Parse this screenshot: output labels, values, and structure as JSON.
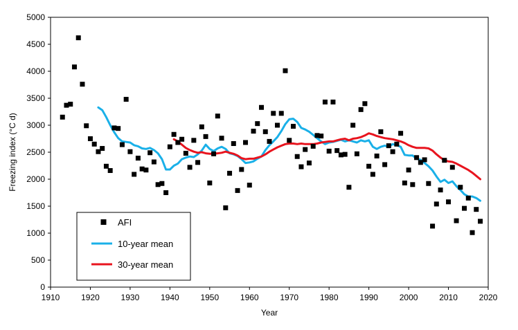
{
  "chart_data": {
    "type": "scatter",
    "title": "",
    "xlabel": "Year",
    "ylabel": "Freezing index (°C d)",
    "xlim": [
      1910,
      2020
    ],
    "ylim": [
      0,
      5000
    ],
    "xticks": [
      1910,
      1920,
      1930,
      1940,
      1950,
      1960,
      1970,
      1980,
      1990,
      2000,
      2010,
      2020
    ],
    "yticks": [
      0,
      500,
      1000,
      1500,
      2000,
      2500,
      3000,
      3500,
      4000,
      4500,
      5000
    ],
    "xtick_labels": [
      "1910",
      "1920",
      "1930",
      "1940",
      "1950",
      "1960",
      "1970",
      "1980",
      "1990",
      "2000",
      "2010",
      "2020"
    ],
    "ytick_labels": [
      "0",
      "500",
      "1000",
      "1500",
      "2000",
      "2500",
      "3000",
      "3500",
      "4000",
      "4500",
      "5000"
    ],
    "grid": false,
    "legend": {
      "placement": "bottom-left",
      "entries": [
        {
          "label": "AFI",
          "type": "marker",
          "color": "#000000"
        },
        {
          "label": "10-year mean",
          "type": "line",
          "color": "#1ab0e8"
        },
        {
          "label": "30-year mean",
          "type": "line",
          "color": "#e8141e"
        }
      ]
    },
    "series": [
      {
        "name": "AFI",
        "kind": "scatter",
        "color": "#000000",
        "x": [
          1913,
          1914,
          1915,
          1916,
          1917,
          1918,
          1919,
          1920,
          1921,
          1922,
          1923,
          1924,
          1925,
          1926,
          1927,
          1928,
          1929,
          1930,
          1931,
          1932,
          1933,
          1934,
          1935,
          1936,
          1937,
          1938,
          1939,
          1940,
          1941,
          1942,
          1943,
          1944,
          1945,
          1946,
          1947,
          1948,
          1949,
          1950,
          1951,
          1952,
          1953,
          1954,
          1955,
          1956,
          1957,
          1958,
          1959,
          1960,
          1961,
          1962,
          1963,
          1964,
          1965,
          1966,
          1967,
          1968,
          1969,
          1970,
          1971,
          1972,
          1973,
          1974,
          1975,
          1976,
          1977,
          1978,
          1979,
          1980,
          1981,
          1982,
          1983,
          1984,
          1985,
          1986,
          1987,
          1988,
          1989,
          1990,
          1991,
          1992,
          1993,
          1994,
          1995,
          1996,
          1997,
          1998,
          1999,
          2000,
          2001,
          2002,
          2003,
          2004,
          2005,
          2006,
          2007,
          2008,
          2009,
          2010,
          2011,
          2012,
          2013,
          2014,
          2015,
          2016,
          2017,
          2018
        ],
        "y": [
          3150,
          3370,
          3390,
          4080,
          4620,
          3760,
          2990,
          2750,
          2650,
          2510,
          2570,
          2240,
          2160,
          2950,
          2940,
          2640,
          3480,
          2510,
          2090,
          2390,
          2190,
          2170,
          2490,
          2320,
          1900,
          1920,
          1750,
          2600,
          2830,
          2680,
          2740,
          2480,
          2220,
          2720,
          2310,
          2970,
          2790,
          1930,
          2470,
          3170,
          2760,
          1470,
          2110,
          2660,
          1790,
          2180,
          2680,
          1890,
          2890,
          3030,
          3330,
          2880,
          2700,
          3220,
          3000,
          3220,
          4010,
          2720,
          2980,
          2420,
          2230,
          2550,
          2300,
          2610,
          2810,
          2800,
          3430,
          2520,
          3430,
          2530,
          2450,
          2460,
          1850,
          3000,
          2470,
          3290,
          3400,
          2240,
          2090,
          2430,
          2880,
          2270,
          2620,
          2510,
          2650,
          2850,
          1930,
          2170,
          1900,
          2400,
          2310,
          2360,
          1920,
          1130,
          1540,
          1800,
          2350,
          1580,
          2220,
          1230,
          1850,
          1460,
          1650,
          1010,
          1440,
          1220
        ]
      },
      {
        "name": "10-year mean",
        "kind": "line",
        "color": "#1ab0e8",
        "x": [
          1922,
          1923,
          1924,
          1925,
          1926,
          1927,
          1928,
          1929,
          1930,
          1931,
          1932,
          1933,
          1934,
          1935,
          1936,
          1937,
          1938,
          1939,
          1940,
          1941,
          1942,
          1943,
          1944,
          1945,
          1946,
          1947,
          1948,
          1949,
          1950,
          1951,
          1952,
          1953,
          1954,
          1955,
          1956,
          1957,
          1958,
          1959,
          1960,
          1961,
          1962,
          1963,
          1964,
          1965,
          1966,
          1967,
          1968,
          1969,
          1970,
          1971,
          1972,
          1973,
          1974,
          1975,
          1976,
          1977,
          1978,
          1979,
          1980,
          1981,
          1982,
          1983,
          1984,
          1985,
          1986,
          1987,
          1988,
          1989,
          1990,
          1991,
          1992,
          1993,
          1994,
          1995,
          1996,
          1997,
          1998,
          1999,
          2000,
          2001,
          2002,
          2003,
          2004,
          2005,
          2006,
          2007,
          2008,
          2009,
          2010,
          2011,
          2012,
          2013,
          2014,
          2015,
          2016,
          2017,
          2018
        ],
        "y": [
          3330,
          3280,
          3150,
          3000,
          2870,
          2760,
          2700,
          2690,
          2680,
          2630,
          2610,
          2570,
          2560,
          2580,
          2540,
          2480,
          2370,
          2180,
          2180,
          2250,
          2290,
          2370,
          2400,
          2420,
          2410,
          2460,
          2530,
          2640,
          2560,
          2520,
          2570,
          2600,
          2560,
          2480,
          2460,
          2430,
          2370,
          2300,
          2310,
          2330,
          2380,
          2420,
          2540,
          2630,
          2700,
          2780,
          2890,
          3020,
          3110,
          3120,
          3060,
          2950,
          2920,
          2880,
          2820,
          2760,
          2700,
          2650,
          2680,
          2690,
          2710,
          2730,
          2700,
          2720,
          2700,
          2680,
          2720,
          2700,
          2720,
          2600,
          2560,
          2600,
          2620,
          2600,
          2650,
          2630,
          2600,
          2450,
          2440,
          2440,
          2380,
          2360,
          2300,
          2240,
          2160,
          2050,
          1950,
          1990,
          1930,
          1960,
          1870,
          1800,
          1720,
          1680,
          1680,
          1650,
          1600
        ]
      },
      {
        "name": "30-year mean",
        "kind": "line",
        "color": "#e8141e",
        "x": [
          1941,
          1942,
          1943,
          1944,
          1945,
          1946,
          1947,
          1948,
          1949,
          1950,
          1951,
          1952,
          1953,
          1954,
          1955,
          1956,
          1957,
          1958,
          1959,
          1960,
          1961,
          1962,
          1963,
          1964,
          1965,
          1966,
          1967,
          1968,
          1969,
          1970,
          1971,
          1972,
          1973,
          1974,
          1975,
          1976,
          1977,
          1978,
          1979,
          1980,
          1981,
          1982,
          1983,
          1984,
          1985,
          1986,
          1987,
          1988,
          1989,
          1990,
          1991,
          1992,
          1993,
          1994,
          1995,
          1996,
          1997,
          1998,
          1999,
          2000,
          2001,
          2002,
          2003,
          2004,
          2005,
          2006,
          2007,
          2008,
          2009,
          2010,
          2011,
          2012,
          2013,
          2014,
          2015,
          2016,
          2017,
          2018
        ],
        "y": [
          2740,
          2700,
          2640,
          2580,
          2540,
          2510,
          2490,
          2500,
          2480,
          2470,
          2470,
          2480,
          2490,
          2510,
          2490,
          2470,
          2440,
          2390,
          2370,
          2380,
          2380,
          2400,
          2420,
          2460,
          2510,
          2550,
          2590,
          2620,
          2650,
          2660,
          2660,
          2650,
          2660,
          2650,
          2650,
          2650,
          2660,
          2680,
          2690,
          2700,
          2700,
          2720,
          2740,
          2750,
          2720,
          2750,
          2760,
          2780,
          2810,
          2850,
          2830,
          2800,
          2780,
          2760,
          2750,
          2740,
          2720,
          2700,
          2670,
          2630,
          2600,
          2580,
          2580,
          2580,
          2570,
          2530,
          2460,
          2400,
          2350,
          2330,
          2320,
          2290,
          2250,
          2210,
          2170,
          2120,
          2060,
          2000
        ]
      }
    ]
  }
}
